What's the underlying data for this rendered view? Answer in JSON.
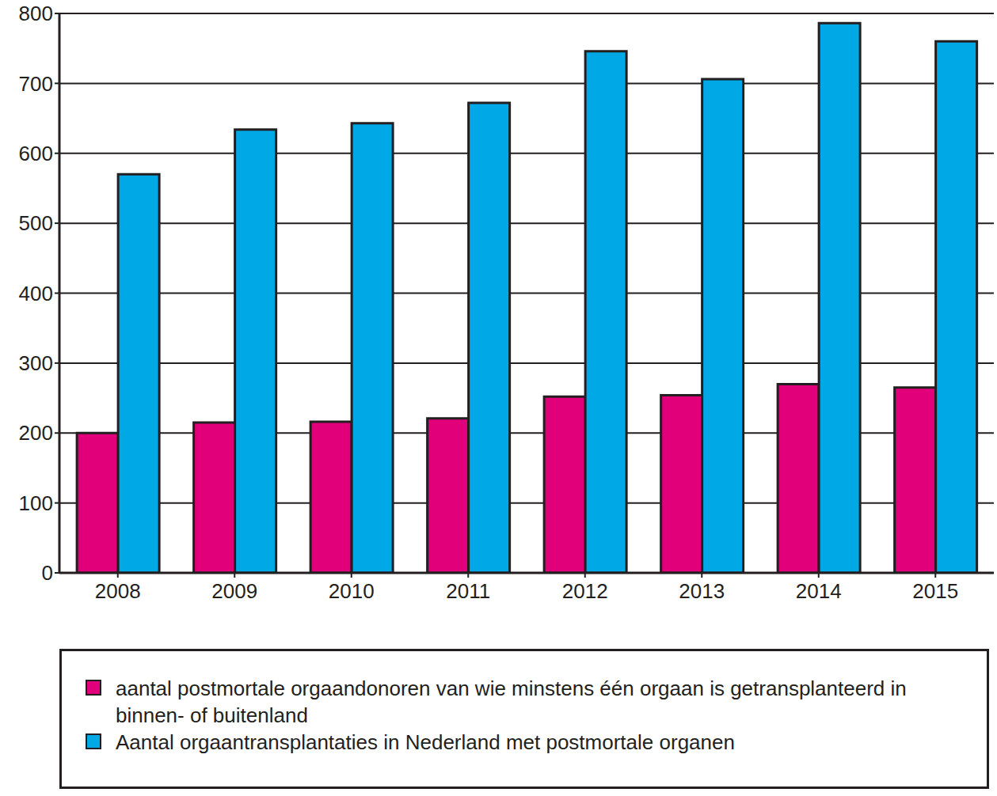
{
  "chart_data": {
    "type": "bar",
    "categories": [
      "2008",
      "2009",
      "2010",
      "2011",
      "2012",
      "2013",
      "2014",
      "2015"
    ],
    "series": [
      {
        "name": "aantal postmortale orgaandonoren van wie minstens één orgaan is getransplanteerd in binnen- of buitenland",
        "color": "#e2007a",
        "values": [
          200,
          215,
          216,
          221,
          252,
          254,
          270,
          265
        ]
      },
      {
        "name": "Aantal orgaantransplantaties in Nederland met postmortale organen",
        "color": "#00a9e6",
        "values": [
          570,
          634,
          643,
          672,
          746,
          706,
          786,
          760
        ]
      }
    ],
    "ylim": [
      0,
      800
    ],
    "yticks": [
      0,
      100,
      200,
      300,
      400,
      500,
      600,
      700,
      800
    ],
    "grid": true,
    "legend": "bottom"
  }
}
